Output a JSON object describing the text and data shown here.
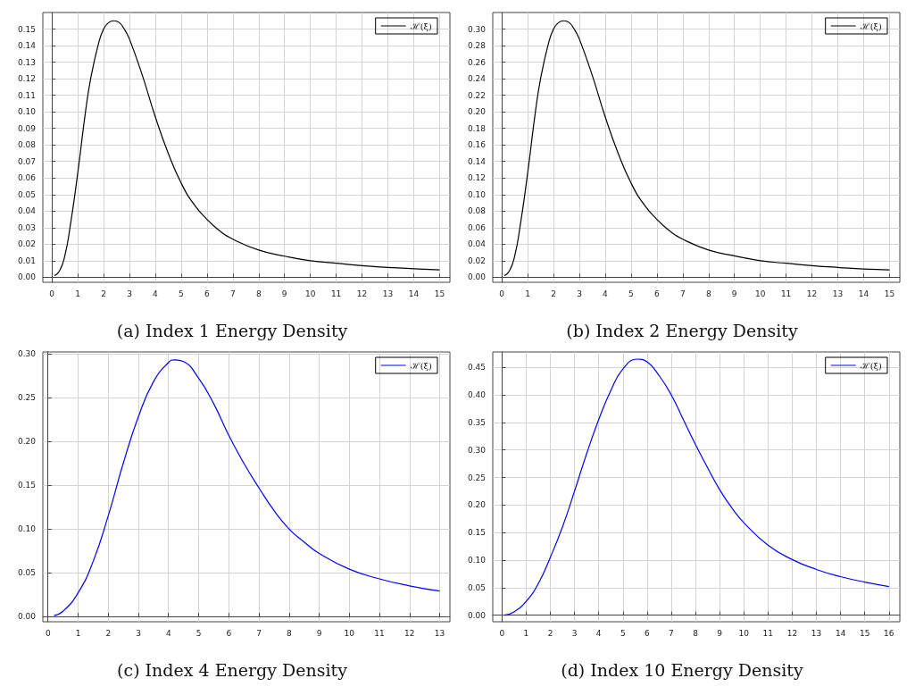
{
  "chart_data": [
    {
      "type": "line",
      "title": "(a) Index 1 Energy Density",
      "xlim": [
        -0.35,
        15.4
      ],
      "ylim": [
        -0.003,
        0.16
      ],
      "xticks": [
        0,
        1,
        2,
        3,
        4,
        5,
        6,
        7,
        8,
        9,
        10,
        11,
        12,
        13,
        14,
        15
      ],
      "yticks": [
        {
          "value": 0,
          "label": "0.00"
        },
        {
          "value": 0.01,
          "label": "0.01"
        },
        {
          "value": 0.02,
          "label": "0.02"
        },
        {
          "value": 0.03,
          "label": "0.03"
        },
        {
          "value": 0.04,
          "label": "0.04"
        },
        {
          "value": 0.05,
          "label": "0.05"
        },
        {
          "value": 0.06,
          "label": "0.06"
        },
        {
          "value": 0.07,
          "label": "0.07"
        },
        {
          "value": 0.08,
          "label": "0.08"
        },
        {
          "value": 0.09,
          "label": "0.09"
        },
        {
          "value": 0.1,
          "label": "0.10"
        },
        {
          "value": 0.11,
          "label": "0.11"
        },
        {
          "value": 0.12,
          "label": "0.12"
        },
        {
          "value": 0.13,
          "label": "0.13"
        },
        {
          "value": 0.14,
          "label": "0.14"
        },
        {
          "value": 0.15,
          "label": "0.15"
        }
      ],
      "grid": true,
      "legend": "top right",
      "x": [
        0.1,
        0.3,
        0.5,
        0.7,
        1.0,
        1.3,
        1.5,
        1.8,
        2.0,
        2.2,
        2.4,
        2.6,
        2.8,
        3.0,
        3.5,
        4.0,
        4.5,
        5.0,
        5.5,
        6.0,
        6.5,
        7.0,
        8,
        9,
        10,
        11,
        12,
        13,
        14,
        15
      ],
      "series": [
        {
          "name": "ℋ(ξ)",
          "color": "#000000",
          "values": [
            0.001,
            0.004,
            0.013,
            0.03,
            0.063,
            0.1,
            0.12,
            0.141,
            0.15,
            0.154,
            0.155,
            0.154,
            0.15,
            0.144,
            0.122,
            0.097,
            0.075,
            0.057,
            0.044,
            0.035,
            0.028,
            0.023,
            0.0165,
            0.0128,
            0.01,
            0.0085,
            0.007,
            0.006,
            0.0052,
            0.0045
          ]
        }
      ]
    },
    {
      "type": "line",
      "title": "(b) Index 2 Energy Density",
      "xlim": [
        -0.35,
        15.4
      ],
      "ylim": [
        -0.006,
        0.32
      ],
      "xticks": [
        0,
        1,
        2,
        3,
        4,
        5,
        6,
        7,
        8,
        9,
        10,
        11,
        12,
        13,
        14,
        15
      ],
      "yticks": [
        {
          "value": 0,
          "label": "0.00"
        },
        {
          "value": 0.02,
          "label": "0.02"
        },
        {
          "value": 0.04,
          "label": "0.04"
        },
        {
          "value": 0.06,
          "label": "0.06"
        },
        {
          "value": 0.08,
          "label": "0.08"
        },
        {
          "value": 0.1,
          "label": "0.10"
        },
        {
          "value": 0.12,
          "label": "0.12"
        },
        {
          "value": 0.14,
          "label": "0.14"
        },
        {
          "value": 0.16,
          "label": "0.16"
        },
        {
          "value": 0.18,
          "label": "0.18"
        },
        {
          "value": 0.2,
          "label": "0.20"
        },
        {
          "value": 0.22,
          "label": "0.22"
        },
        {
          "value": 0.24,
          "label": "0.24"
        },
        {
          "value": 0.26,
          "label": "0.26"
        },
        {
          "value": 0.28,
          "label": "0.28"
        },
        {
          "value": 0.3,
          "label": "0.30"
        }
      ],
      "grid": true,
      "legend": "top right",
      "x": [
        0.1,
        0.3,
        0.5,
        0.7,
        1.0,
        1.3,
        1.5,
        1.8,
        2.0,
        2.2,
        2.4,
        2.6,
        2.8,
        3.0,
        3.5,
        4.0,
        4.5,
        5.0,
        5.5,
        6.0,
        6.5,
        7.0,
        8,
        9,
        10,
        11,
        12,
        13,
        14,
        15
      ],
      "series": [
        {
          "name": "ℋ(ξ)",
          "color": "#000000",
          "values": [
            0.002,
            0.008,
            0.026,
            0.06,
            0.126,
            0.2,
            0.24,
            0.282,
            0.3,
            0.308,
            0.31,
            0.308,
            0.3,
            0.288,
            0.244,
            0.194,
            0.15,
            0.114,
            0.088,
            0.07,
            0.056,
            0.046,
            0.033,
            0.026,
            0.02,
            0.017,
            0.014,
            0.012,
            0.01,
            0.009
          ]
        }
      ]
    },
    {
      "type": "line",
      "title": "(c) Index 4 Energy Density",
      "xlim": [
        -0.17,
        13.34
      ],
      "ylim": [
        -0.006,
        0.302
      ],
      "xticks": [
        0,
        1,
        2,
        3,
        4,
        5,
        6,
        7,
        8,
        9,
        10,
        11,
        12,
        13
      ],
      "yticks": [
        {
          "value": 0,
          "label": "0.00"
        },
        {
          "value": 0.05,
          "label": "0.05"
        },
        {
          "value": 0.1,
          "label": "0.10"
        },
        {
          "value": 0.15,
          "label": "0.15"
        },
        {
          "value": 0.2,
          "label": "0.20"
        },
        {
          "value": 0.25,
          "label": "0.25"
        },
        {
          "value": 0.3,
          "label": "0.30"
        }
      ],
      "grid": true,
      "legend": "top right",
      "x": [
        0.2,
        0.5,
        1.0,
        1.5,
        2.0,
        2.5,
        3.0,
        3.5,
        4.0,
        4.2,
        4.5,
        5.0,
        5.5,
        6.0,
        6.5,
        7.0,
        7.5,
        8.0,
        8.5,
        9.0,
        10,
        11,
        12,
        13
      ],
      "series": [
        {
          "name": "ℋ(ξ)",
          "color": "#0000ff",
          "values": [
            0.001,
            0.006,
            0.027,
            0.063,
            0.115,
            0.175,
            0.228,
            0.268,
            0.29,
            0.293,
            0.291,
            0.272,
            0.243,
            0.207,
            0.175,
            0.147,
            0.121,
            0.1,
            0.085,
            0.072,
            0.054,
            0.043,
            0.035,
            0.029
          ]
        }
      ]
    },
    {
      "type": "line",
      "title": "(d) Index 10 Energy Density",
      "xlim": [
        -0.38,
        16.45
      ],
      "ylim": [
        -0.012,
        0.478
      ],
      "xticks": [
        0,
        1,
        2,
        3,
        4,
        5,
        6,
        7,
        8,
        9,
        10,
        11,
        12,
        13,
        14,
        15,
        16
      ],
      "yticks": [
        {
          "value": 0,
          "label": "0.00"
        },
        {
          "value": 0.05,
          "label": "0.05"
        },
        {
          "value": 0.1,
          "label": "0.10"
        },
        {
          "value": 0.15,
          "label": "0.15"
        },
        {
          "value": 0.2,
          "label": "0.20"
        },
        {
          "value": 0.25,
          "label": "0.25"
        },
        {
          "value": 0.3,
          "label": "0.30"
        },
        {
          "value": 0.35,
          "label": "0.35"
        },
        {
          "value": 0.4,
          "label": "0.40"
        },
        {
          "value": 0.45,
          "label": "0.45"
        }
      ],
      "grid": true,
      "legend": "top right",
      "x": [
        0.1,
        0.5,
        1.0,
        1.5,
        2.0,
        2.5,
        3.0,
        3.5,
        4.0,
        4.5,
        5.0,
        5.6,
        6.0,
        6.5,
        7.0,
        7.5,
        8.0,
        8.5,
        9.0,
        9.5,
        10,
        11,
        12,
        13,
        14,
        15,
        16
      ],
      "series": [
        {
          "name": "ℋ(ξ)",
          "color": "#0000ff",
          "values": [
            0.0,
            0.006,
            0.025,
            0.057,
            0.105,
            0.16,
            0.225,
            0.293,
            0.355,
            0.408,
            0.447,
            0.465,
            0.46,
            0.435,
            0.4,
            0.355,
            0.31,
            0.268,
            0.228,
            0.195,
            0.168,
            0.127,
            0.101,
            0.083,
            0.07,
            0.06,
            0.052
          ]
        }
      ]
    }
  ]
}
